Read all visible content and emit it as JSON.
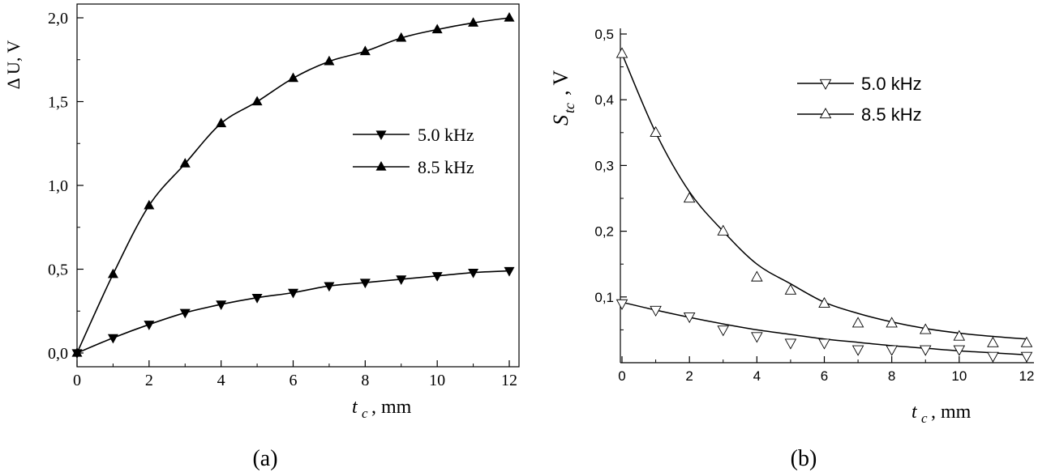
{
  "chart_data": [
    {
      "type": "line",
      "panel_label": "(a)",
      "xlabel": "t",
      "xlabel_sub": "c",
      "xlabel_unit": ", mm",
      "ylabel": "Δ U, V",
      "xlim": [
        0,
        12
      ],
      "ylim": [
        0,
        2.0
      ],
      "xticks": [
        0,
        2,
        4,
        6,
        8,
        10,
        12
      ],
      "yticks": [
        "0,0",
        "0,5",
        "1,0",
        "1,5",
        "2,0"
      ],
      "ytick_values": [
        0,
        0.5,
        1.0,
        1.5,
        2.0
      ],
      "legend_position": "center-right",
      "series": [
        {
          "name": "5.0 kHz",
          "marker": "filled-triangle-down",
          "x": [
            0,
            1,
            2,
            3,
            4,
            5,
            6,
            7,
            8,
            9,
            10,
            11,
            12
          ],
          "y": [
            0.0,
            0.09,
            0.17,
            0.24,
            0.29,
            0.33,
            0.36,
            0.4,
            0.42,
            0.44,
            0.46,
            0.48,
            0.49
          ]
        },
        {
          "name": "8.5 kHz",
          "marker": "filled-triangle-up",
          "x": [
            0,
            1,
            2,
            3,
            4,
            5,
            6,
            7,
            8,
            9,
            10,
            11,
            12
          ],
          "y": [
            0.0,
            0.47,
            0.88,
            1.13,
            1.37,
            1.5,
            1.64,
            1.74,
            1.8,
            1.88,
            1.93,
            1.97,
            2.0
          ]
        }
      ]
    },
    {
      "type": "scatter",
      "panel_label": "(b)",
      "xlabel": "t",
      "xlabel_sub": "c",
      "xlabel_unit": ", mm",
      "ylabel": "S",
      "ylabel_sub": "tc",
      "ylabel_unit": ", V",
      "xlim": [
        0,
        12
      ],
      "ylim": [
        0,
        0.5
      ],
      "xticks": [
        0,
        2,
        4,
        6,
        8,
        10,
        12
      ],
      "yticks": [
        "0,1",
        "0,2",
        "0,3",
        "0,4",
        "0,5"
      ],
      "ytick_values": [
        0.1,
        0.2,
        0.3,
        0.4,
        0.5
      ],
      "legend_position": "top-right",
      "series": [
        {
          "name": "5.0 kHz",
          "marker": "open-triangle-down",
          "x": [
            0,
            1,
            2,
            3,
            4,
            5,
            6,
            7,
            8,
            9,
            10,
            11,
            12
          ],
          "y": [
            0.09,
            0.08,
            0.07,
            0.05,
            0.04,
            0.03,
            0.03,
            0.02,
            0.02,
            0.02,
            0.02,
            0.01,
            0.01
          ],
          "fit": [
            0.092,
            0.08,
            0.069,
            0.059,
            0.05,
            0.043,
            0.036,
            0.031,
            0.026,
            0.022,
            0.018,
            0.015,
            0.012
          ]
        },
        {
          "name": "8.5 kHz",
          "marker": "open-triangle-up",
          "x": [
            0,
            1,
            2,
            3,
            4,
            5,
            6,
            7,
            8,
            9,
            10,
            11,
            12
          ],
          "y": [
            0.47,
            0.35,
            0.25,
            0.2,
            0.13,
            0.11,
            0.09,
            0.06,
            0.06,
            0.05,
            0.04,
            0.03,
            0.03
          ],
          "fit": [
            0.47,
            0.35,
            0.26,
            0.2,
            0.15,
            0.12,
            0.092,
            0.075,
            0.062,
            0.052,
            0.045,
            0.04,
            0.036
          ]
        }
      ]
    }
  ],
  "colors": {
    "ink": "#000000",
    "bg": "#ffffff"
  }
}
